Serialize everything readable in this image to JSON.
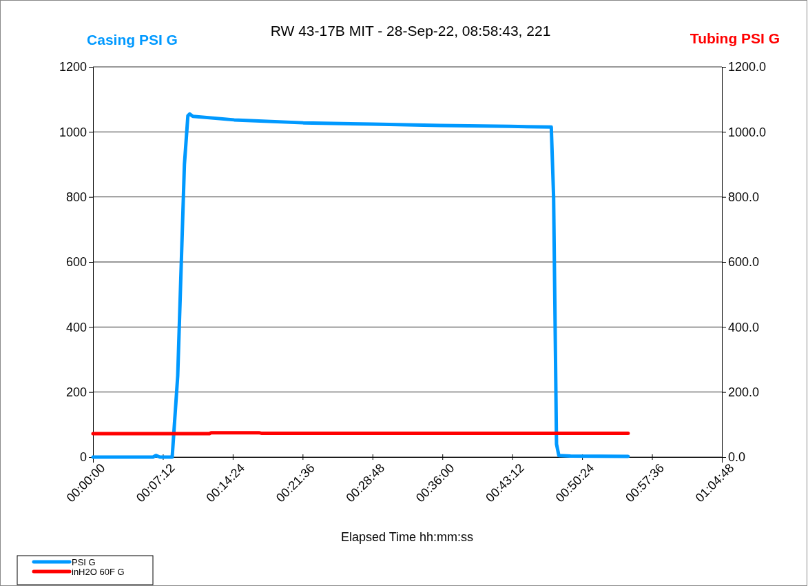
{
  "chart_data": {
    "type": "line",
    "title": "RW 43-17B MIT - 28-Sep-22, 08:58:43, 221",
    "xlabel": "Elapsed Time hh:mm:ss",
    "ylabel": "Casing PSI G",
    "y2label": "Tubing PSI G",
    "xlim": [
      0,
      1.08
    ],
    "xticks": [
      {
        "value": 0,
        "label": "00:00:00"
      },
      {
        "value": 0.12,
        "label": "00:07:12"
      },
      {
        "value": 0.24,
        "label": "00:14:24"
      },
      {
        "value": 0.36,
        "label": "00:21:36"
      },
      {
        "value": 0.48,
        "label": "00:28:48"
      },
      {
        "value": 0.6,
        "label": "00:36:00"
      },
      {
        "value": 0.72,
        "label": "00:43:12"
      },
      {
        "value": 0.84,
        "label": "00:50:24"
      },
      {
        "value": 0.96,
        "label": "00:57:36"
      },
      {
        "value": 1.08,
        "label": "01:04:48"
      }
    ],
    "ylim": [
      0,
      1200
    ],
    "yticks": [
      0,
      200,
      400,
      600,
      800,
      1000,
      1200
    ],
    "y2lim": [
      0,
      1200
    ],
    "y2ticks": [
      {
        "value": 0,
        "label": "0.0"
      },
      {
        "value": 200,
        "label": "200.0"
      },
      {
        "value": 400,
        "label": "400.0"
      },
      {
        "value": 600,
        "label": "600.0"
      },
      {
        "value": 800,
        "label": "800.0"
      },
      {
        "value": 1000,
        "label": "1000.0"
      },
      {
        "value": 1200,
        "label": "1200.0"
      }
    ],
    "grid": "y",
    "legend": "bottom left",
    "marker": "none",
    "line_style": "solid",
    "series": [
      {
        "name": "PSI G",
        "color": "#0099ff",
        "axis": "y",
        "x": [
          0,
          0.103,
          0.108,
          0.115,
          0.136,
          0.1455,
          0.157,
          0.163,
          0.166,
          0.1715,
          0.2425,
          0.361,
          0.479,
          0.597,
          0.716,
          0.787,
          0.791,
          0.796,
          0.8,
          0.82,
          0.919
        ],
        "values": [
          0,
          0,
          5,
          0,
          0,
          250,
          900,
          1050,
          1055,
          1048,
          1037,
          1028,
          1024,
          1020,
          1017,
          1015,
          800,
          40,
          5,
          3,
          2
        ]
      },
      {
        "name": "inH2O 60F G",
        "color": "#ff0000",
        "axis": "y2",
        "x": [
          0,
          0.2,
          0.203,
          0.285,
          0.29,
          0.919
        ],
        "values": [
          72,
          72,
          75,
          75,
          73,
          73
        ]
      }
    ]
  }
}
